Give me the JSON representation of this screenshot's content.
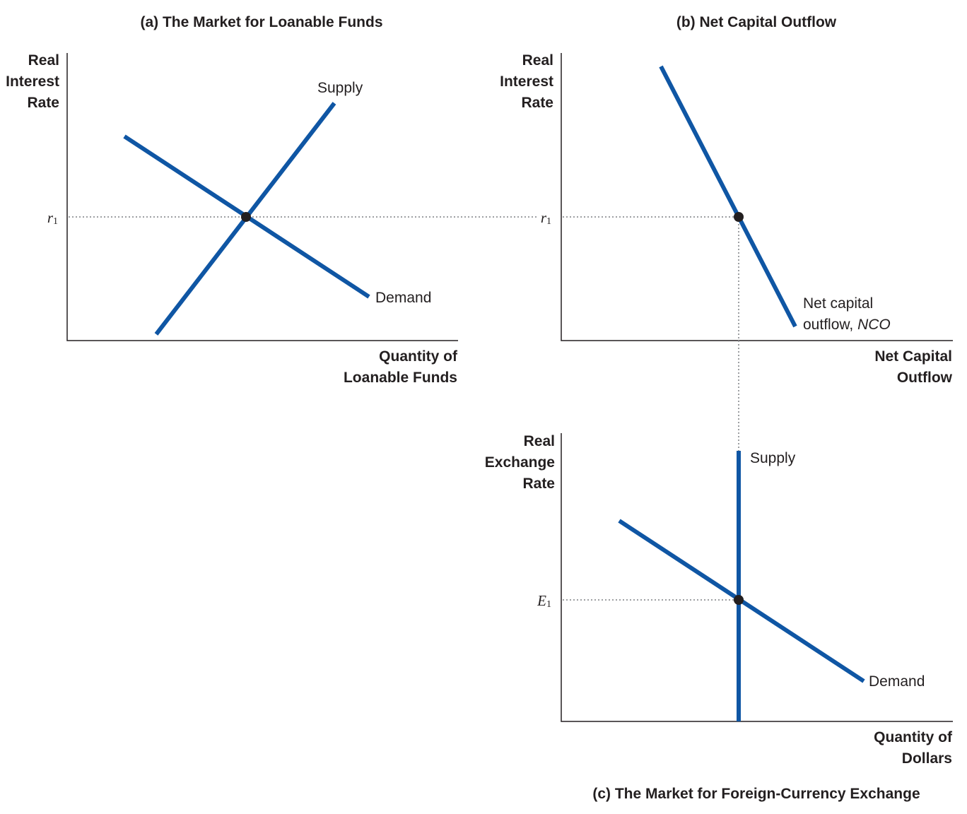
{
  "panel_a": {
    "title": "(a) The Market for Loanable Funds",
    "y_label": [
      "Real",
      "Interest",
      "Rate"
    ],
    "x_label": [
      "Quantity of",
      "Loanable Funds"
    ],
    "supply_label": "Supply",
    "demand_label": "Demand",
    "tick_letter": "r",
    "tick_sub": "1"
  },
  "panel_b": {
    "title": "(b) Net Capital Outflow",
    "y_label": [
      "Real",
      "Interest",
      "Rate"
    ],
    "x_label": [
      "Net Capital",
      "Outflow"
    ],
    "curve_label_line1": "Net capital",
    "curve_label_line2": "outflow, ",
    "curve_label_italic": "NCO",
    "tick_letter": "r",
    "tick_sub": "1"
  },
  "panel_c": {
    "title": "(c) The Market for Foreign-Currency Exchange",
    "y_label": [
      "Real",
      "Exchange",
      "Rate"
    ],
    "x_label": [
      "Quantity of",
      "Dollars"
    ],
    "supply_label": "Supply",
    "demand_label": "Demand",
    "tick_letter": "E",
    "tick_sub": "1"
  },
  "colors": {
    "curve": "#0f56a4",
    "axis": "#231f20",
    "guide": "#9d9fa2"
  }
}
